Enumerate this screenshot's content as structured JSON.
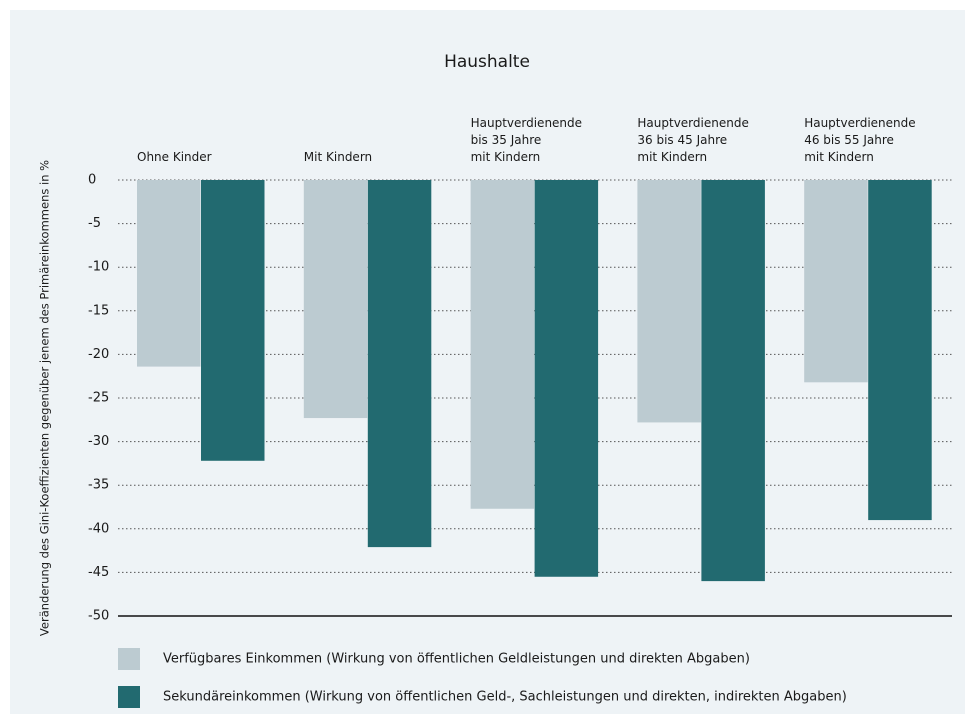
{
  "chart_data": {
    "type": "bar",
    "title": "Haushalte",
    "y_label": "Veränderung des Gini-Koeffizienten gegenüber jenem des Primäreinkommens in %",
    "categories": [
      "Ohne Kinder",
      "Mit Kindern",
      "Hauptverdienende\nbis 35 Jahre\nmit Kindern",
      "Hauptverdienende\n36 bis 45 Jahre\nmit Kindern",
      "Hauptverdienende\n46 bis 55 Jahre\nmit Kindern"
    ],
    "series": [
      {
        "name": "Verfügbares Einkommen (Wirkung von öffentlichen Geldleistungen und direkten Abgaben)",
        "color": "#bccbd1",
        "values": [
          -21.4,
          -27.3,
          -37.7,
          -27.8,
          -23.2
        ]
      },
      {
        "name": "Sekundäreinkommen (Wirkung von öffentlichen Geld-, Sachleistungen und direkten, indirekten Abgaben)",
        "color": "#226a70",
        "values": [
          -32.2,
          -42.1,
          -45.5,
          -46.0,
          -39.0
        ]
      }
    ],
    "ylim": [
      -50,
      0
    ],
    "yticks": [
      0,
      -5,
      -10,
      -15,
      -20,
      -25,
      -30,
      -35,
      -40,
      -45,
      -50
    ],
    "grid": true
  }
}
